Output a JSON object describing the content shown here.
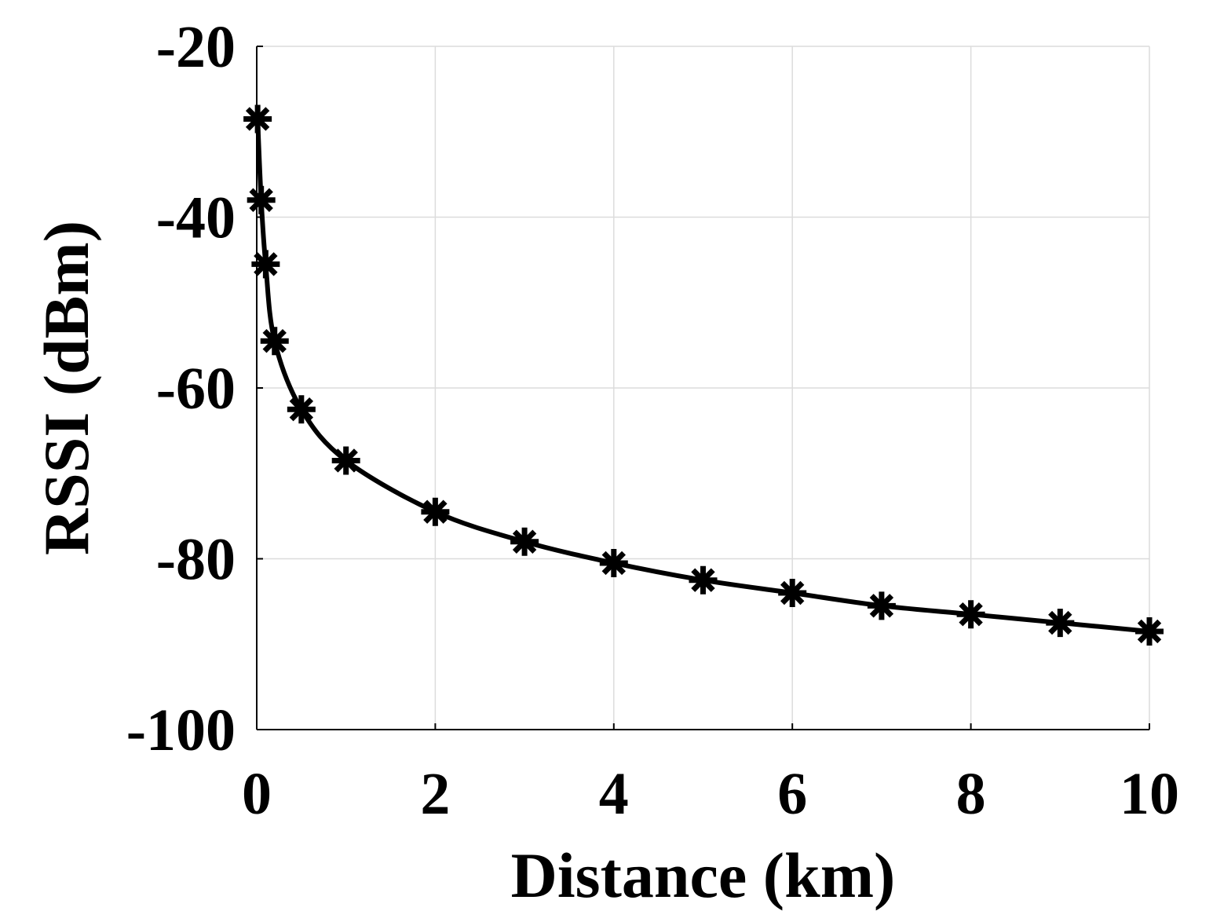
{
  "chart_data": {
    "type": "line",
    "xlabel": "Distance (km)",
    "ylabel": "RSSI (dBm)",
    "xlim": [
      0,
      10
    ],
    "ylim": [
      -100,
      -20
    ],
    "x_ticks": [
      "0",
      "2",
      "4",
      "6",
      "8",
      "10"
    ],
    "y_ticks": [
      "-20",
      "-40",
      "-60",
      "-80",
      "-100"
    ],
    "grid": true,
    "legend": "none",
    "marker": "asterisk",
    "color": "#000000",
    "series": [
      {
        "x": [
          0.01,
          0.05,
          0.1,
          0.2,
          0.5,
          1,
          2,
          3,
          4,
          5,
          6,
          7,
          8,
          9,
          10
        ],
        "values": [
          -28.5,
          -38,
          -45.5,
          -54.5,
          -62.5,
          -68.5,
          -74.5,
          -78,
          -80.5,
          -82.5,
          -84,
          -85.5,
          -86.5,
          -87.5,
          -88.5
        ]
      }
    ]
  }
}
